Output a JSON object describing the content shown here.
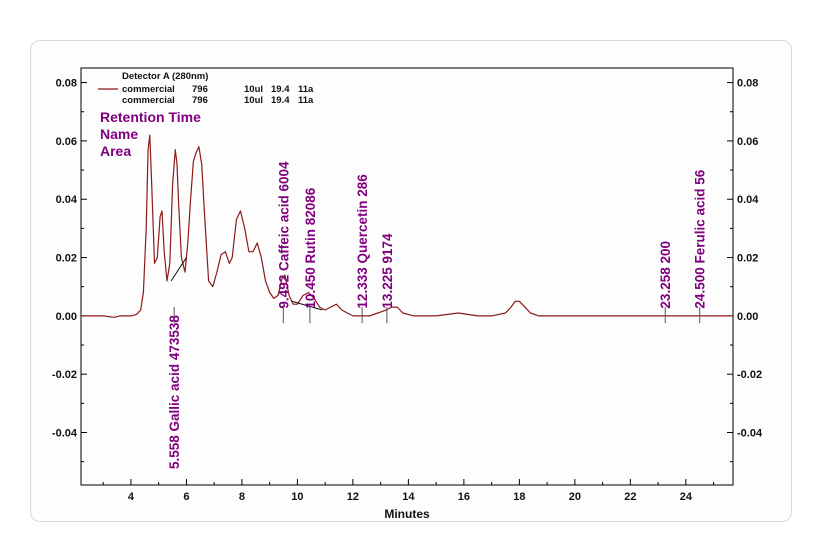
{
  "chart_data": {
    "type": "line",
    "title": "",
    "xlabel": "Minutes",
    "ylabel": "",
    "xlim": [
      2.2,
      25.7
    ],
    "ylim": [
      -0.058,
      0.085
    ],
    "x_ticks": [
      4,
      6,
      8,
      10,
      12,
      14,
      16,
      18,
      20,
      22,
      24
    ],
    "y_ticks": [
      0.08,
      0.06,
      0.04,
      0.02,
      0.0,
      -0.02,
      -0.04
    ],
    "y_tick_labels": [
      "0.08",
      "0.06",
      "0.04",
      "0.02",
      "0.00",
      "-0.02",
      "-0.04"
    ],
    "grid": false,
    "legend": {
      "placement": "top-left",
      "header": "Detector A (280nm)",
      "entries": [
        {
          "c1": "commercial",
          "c2": "796",
          "c3": "10ul",
          "c4": "19.4",
          "c5": "11a"
        },
        {
          "c1": "commercial",
          "c2": "796",
          "c3": "10ul",
          "c4": "19.4",
          "c5": "11a"
        }
      ]
    },
    "label_header": [
      "Retention Time",
      "Name",
      "Area"
    ],
    "series": [
      {
        "name": "commercial 796",
        "color": "#8b1a1a",
        "x": [
          2.2,
          3.0,
          3.4,
          3.6,
          3.8,
          4.0,
          4.2,
          4.35,
          4.45,
          4.55,
          4.62,
          4.68,
          4.75,
          4.85,
          4.95,
          5.05,
          5.12,
          5.2,
          5.3,
          5.4,
          5.5,
          5.6,
          5.66,
          5.72,
          5.82,
          5.95,
          6.05,
          6.15,
          6.25,
          6.35,
          6.45,
          6.55,
          6.65,
          6.8,
          6.95,
          7.1,
          7.25,
          7.4,
          7.55,
          7.65,
          7.8,
          7.95,
          8.1,
          8.25,
          8.4,
          8.55,
          8.7,
          8.85,
          9.0,
          9.15,
          9.3,
          9.45,
          9.55,
          9.7,
          9.85,
          10.0,
          10.2,
          10.4,
          10.6,
          10.8,
          11.0,
          11.2,
          11.4,
          11.6,
          11.8,
          12.0,
          12.3,
          12.6,
          12.9,
          13.2,
          13.4,
          13.6,
          13.8,
          14.2,
          15.0,
          15.8,
          16.5,
          17.0,
          17.5,
          17.7,
          17.85,
          18.0,
          18.2,
          18.4,
          18.7,
          19.2,
          20.0,
          22.0,
          23.2,
          23.3,
          24.4,
          24.55,
          25.7
        ],
        "y": [
          0.0,
          0.0,
          -0.0005,
          0.0,
          0.0,
          0.0,
          0.0005,
          0.002,
          0.008,
          0.03,
          0.057,
          0.062,
          0.045,
          0.018,
          0.02,
          0.034,
          0.036,
          0.022,
          0.012,
          0.018,
          0.045,
          0.057,
          0.052,
          0.038,
          0.02,
          0.015,
          0.025,
          0.04,
          0.053,
          0.056,
          0.058,
          0.052,
          0.035,
          0.012,
          0.01,
          0.015,
          0.021,
          0.022,
          0.018,
          0.02,
          0.033,
          0.036,
          0.03,
          0.022,
          0.022,
          0.025,
          0.02,
          0.012,
          0.008,
          0.006,
          0.007,
          0.013,
          0.014,
          0.007,
          0.004,
          0.004,
          0.007,
          0.008,
          0.006,
          0.003,
          0.002,
          0.003,
          0.004,
          0.002,
          0.001,
          0.0,
          0.0,
          0.0,
          0.001,
          0.002,
          0.003,
          0.003,
          0.001,
          0.0,
          0.0,
          0.001,
          0.0,
          0.0,
          0.001,
          0.003,
          0.005,
          0.005,
          0.003,
          0.001,
          0.0,
          0.0,
          0.0,
          0.0,
          0.0,
          0.0,
          0.0,
          0.0,
          0.0
        ]
      }
    ],
    "peaks": [
      {
        "rt": "5.558",
        "name": "Gallic acid",
        "area": "473538",
        "x": 5.558
      },
      {
        "rt": "9.492",
        "name": "Caffeic acid",
        "area": "6004",
        "x": 9.492
      },
      {
        "rt": "10.450",
        "name": "Rutin",
        "area": "82086",
        "x": 10.45
      },
      {
        "rt": "12.333",
        "name": "Quercetin",
        "area": "286",
        "x": 12.333
      },
      {
        "rt": "13.225",
        "name": "",
        "area": "9174",
        "x": 13.225
      },
      {
        "rt": "23.258",
        "name": "",
        "area": "200",
        "x": 23.258
      },
      {
        "rt": "24.500",
        "name": "Ferulic acid",
        "area": "56",
        "x": 24.5
      }
    ]
  }
}
